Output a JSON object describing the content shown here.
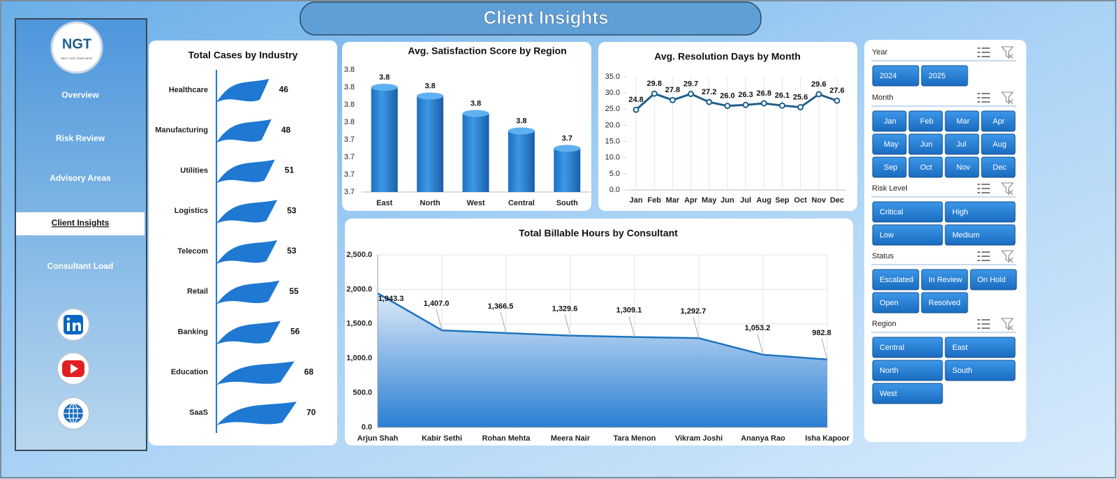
{
  "title": "Client Insights",
  "logo": {
    "name": "NGT",
    "tagline": "NEXT GEN TEMPLATES"
  },
  "nav": [
    "Overview",
    "Risk Review",
    "Advisory Areas",
    "Client Insights",
    "Consultant Load"
  ],
  "slicers": [
    {
      "title": "Year",
      "items": [
        "2024",
        "2025"
      ]
    },
    {
      "title": "Month",
      "items": [
        "Jan",
        "Feb",
        "Mar",
        "Apr",
        "May",
        "Jun",
        "Jul",
        "Aug",
        "Sep",
        "Oct",
        "Nov",
        "Dec"
      ]
    },
    {
      "title": "Risk Level",
      "items": [
        "Critical",
        "High",
        "Low",
        "Medium"
      ]
    },
    {
      "title": "Status",
      "items": [
        "Escalated",
        "In Review",
        "On Hold",
        "Open",
        "Resolved"
      ]
    },
    {
      "title": "Region",
      "items": [
        "Central",
        "East",
        "North",
        "South",
        "West"
      ]
    }
  ],
  "chart_data": [
    {
      "type": "hbar",
      "title": "Total Cases by Industry",
      "categories": [
        "Healthcare",
        "Manufacturing",
        "Utilities",
        "Logistics",
        "Telecom",
        "Retail",
        "Banking",
        "Education",
        "SaaS"
      ],
      "values": [
        46,
        48,
        51,
        53,
        53,
        55,
        56,
        68,
        70
      ],
      "color": "#1f78d1"
    },
    {
      "type": "bar",
      "title": "Avg. Satisfaction Score by Region",
      "categories": [
        "East",
        "North",
        "West",
        "Central",
        "South"
      ],
      "values": [
        3.8,
        3.79,
        3.77,
        3.75,
        3.73
      ],
      "value_labels": [
        "3.8",
        "3.8",
        "3.8",
        "3.8",
        "3.7"
      ],
      "color": "#2e86de",
      "ylim": [
        3.68,
        3.82
      ],
      "yticks": [
        {
          "value": 3.68,
          "label": "3.7"
        },
        {
          "value": 3.7,
          "label": "3.7"
        },
        {
          "value": 3.72,
          "label": "3.7"
        },
        {
          "value": 3.74,
          "label": "3.7"
        },
        {
          "value": 3.76,
          "label": "3.8"
        },
        {
          "value": 3.78,
          "label": "3.8"
        },
        {
          "value": 3.8,
          "label": "3.8"
        },
        {
          "value": 3.82,
          "label": "3.8"
        }
      ]
    },
    {
      "type": "line",
      "title": "Avg. Resolution Days by Month",
      "categories": [
        "Jan",
        "Feb",
        "Mar",
        "Apr",
        "May",
        "Jun",
        "Jul",
        "Aug",
        "Sep",
        "Oct",
        "Nov",
        "Dec"
      ],
      "values": [
        24.8,
        29.8,
        27.8,
        29.7,
        27.2,
        26.0,
        26.3,
        26.8,
        26.1,
        25.6,
        29.6,
        27.6
      ],
      "value_labels": [
        "24.8",
        "29.8",
        "27.8",
        "29.7",
        "27.2",
        "26.0",
        "26.3",
        "26.8",
        "26.1",
        "25.6",
        "29.6",
        "27.6"
      ],
      "color": "#1f5f8b",
      "ylim": [
        0,
        35
      ],
      "yticks": [
        {
          "value": 0,
          "label": "0.0"
        },
        {
          "value": 5,
          "label": "5.0"
        },
        {
          "value": 10,
          "label": "10.0"
        },
        {
          "value": 15,
          "label": "15.0"
        },
        {
          "value": 20,
          "label": "20.0"
        },
        {
          "value": 25,
          "label": "25.0"
        },
        {
          "value": 30,
          "label": "30.0"
        },
        {
          "value": 35,
          "label": "35.0"
        }
      ]
    },
    {
      "type": "area",
      "title": "Total Billable Hours by Consultant",
      "categories": [
        "Arjun Shah",
        "Kabir Sethi",
        "Rohan Mehta",
        "Meera Nair",
        "Tara Menon",
        "Vikram Joshi",
        "Ananya Rao",
        "Isha Kapoor"
      ],
      "values": [
        1943.3,
        1407.0,
        1366.5,
        1329.6,
        1309.1,
        1292.7,
        1053.2,
        982.8
      ],
      "value_labels": [
        "1,943.3",
        "1,407.0",
        "1,366.5",
        "1,329.6",
        "1,309.1",
        "1,292.7",
        "1,053.2",
        "982.8"
      ],
      "color": "#1e73be",
      "ylim": [
        0,
        2500
      ],
      "yticks": [
        {
          "value": 0,
          "label": "0.0"
        },
        {
          "value": 500,
          "label": "500.0"
        },
        {
          "value": 1000,
          "label": "1,000.0"
        },
        {
          "value": 1500,
          "label": "1,500.0"
        },
        {
          "value": 2000,
          "label": "2,000.0"
        },
        {
          "value": 2500,
          "label": "2,500.0"
        }
      ]
    }
  ]
}
